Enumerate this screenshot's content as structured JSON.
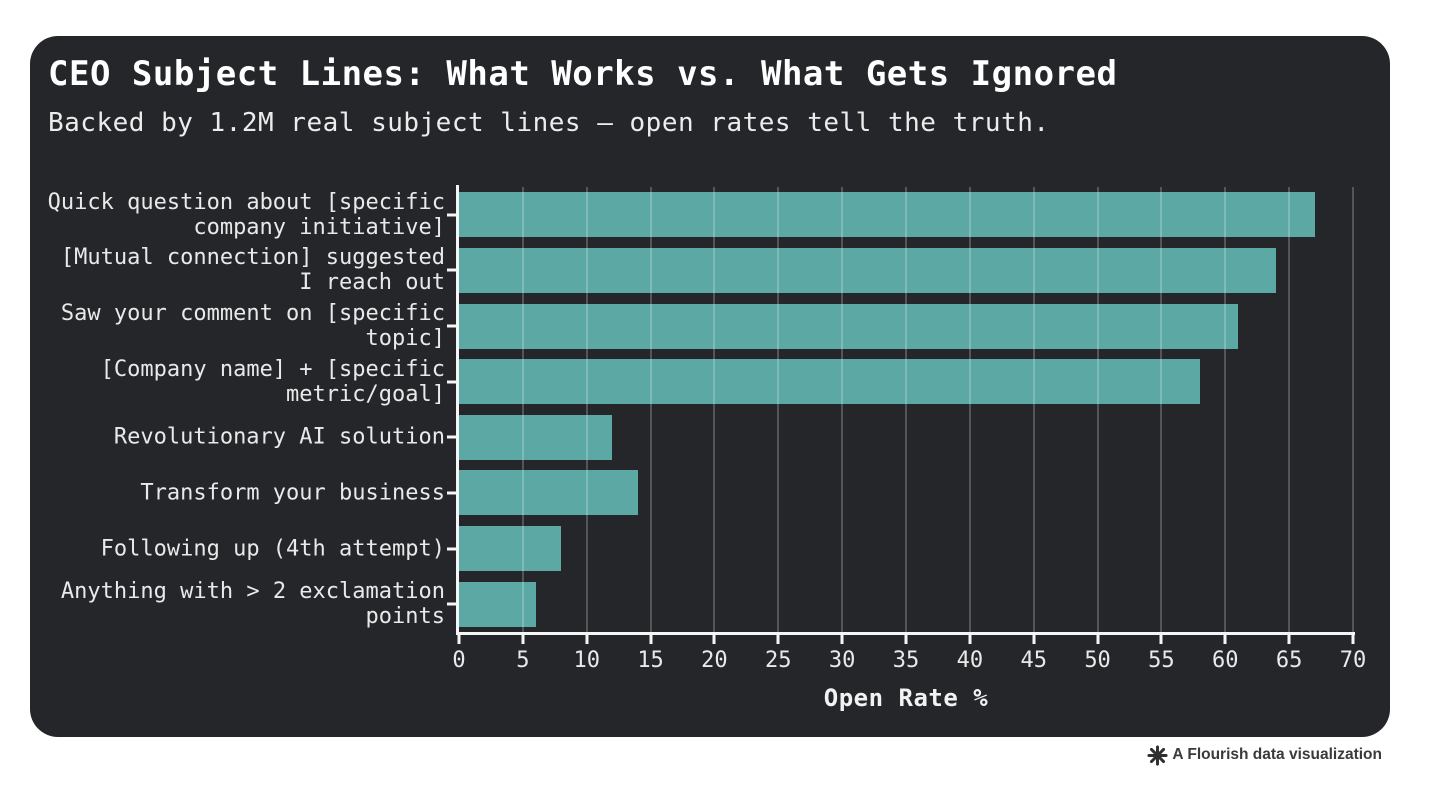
{
  "card": {
    "title": "CEO Subject Lines: What Works vs. What Gets Ignored",
    "subtitle": "Backed by 1.2M real subject lines — open rates tell the truth."
  },
  "chart_data": {
    "type": "bar",
    "orientation": "horizontal",
    "title": "CEO Subject Lines: What Works vs. What Gets Ignored",
    "subtitle": "Backed by 1.2M real subject lines — open rates tell the truth.",
    "categories": [
      "Quick question about [specific company initiative]",
      "[Mutual connection] suggested I reach out",
      "Saw your comment on [specific topic]",
      "[Company name] + [specific metric/goal]",
      "Revolutionary AI solution",
      "Transform your business",
      "Following up (4th attempt)",
      "Anything with > 2 exclamation points"
    ],
    "values": [
      67,
      64,
      61,
      58,
      12,
      14,
      8,
      6
    ],
    "xlabel": "Open Rate %",
    "ylabel": "",
    "xlim": [
      0,
      70
    ],
    "xticks": [
      0,
      5,
      10,
      15,
      20,
      25,
      30,
      35,
      40,
      45,
      50,
      55,
      60,
      65,
      70
    ],
    "grid": "vertical",
    "legend": "none",
    "bar_color": "#5CA8A5",
    "card_background": "#24262A",
    "axis_color": "#F5F5F5",
    "text_color": "#E9E9E9"
  },
  "footer": {
    "attribution": "A Flourish data visualization",
    "icon": "flourish-asterisk"
  }
}
